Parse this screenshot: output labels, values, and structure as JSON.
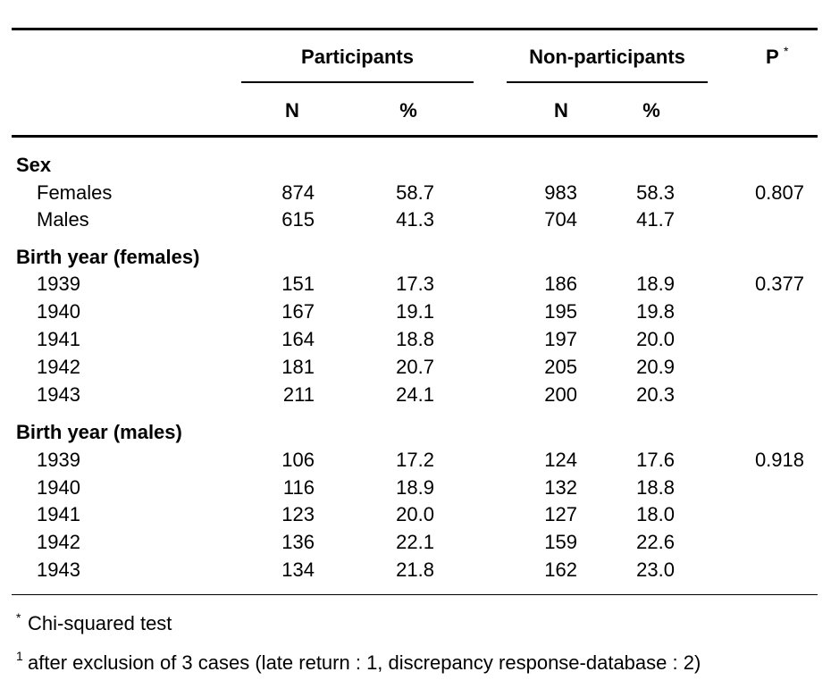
{
  "table": {
    "groups": {
      "participants": "Participants",
      "non_participants": "Non-participants"
    },
    "p_header": {
      "label": "P",
      "marker": "*"
    },
    "subheaders": [
      "N",
      "%",
      "N",
      "%"
    ],
    "sections": [
      {
        "title": "Sex",
        "rows": [
          {
            "label": "Females",
            "values": [
              "874",
              "58.7",
              "983",
              "58.3"
            ],
            "p": "0.807"
          },
          {
            "label": "Males",
            "values": [
              "615",
              "41.3",
              "704",
              "41.7"
            ]
          }
        ]
      },
      {
        "title": "Birth year (females)",
        "rows": [
          {
            "label": "1939",
            "values": [
              "151",
              "17.3",
              "186",
              "18.9"
            ],
            "p": "0.377"
          },
          {
            "label": "1940",
            "values": [
              "167",
              "19.1",
              "195",
              "19.8"
            ]
          },
          {
            "label": "1941",
            "values": [
              "164",
              "18.8",
              "197",
              "20.0"
            ]
          },
          {
            "label": "1942",
            "values": [
              "181",
              "20.7",
              "205",
              "20.9"
            ]
          },
          {
            "label": "1943",
            "values": [
              "211",
              "24.1",
              "200",
              "20.3"
            ]
          }
        ]
      },
      {
        "title": "Birth year (males)",
        "rows": [
          {
            "label": "1939",
            "values": [
              "106",
              "17.2",
              "124",
              "17.6"
            ],
            "p": "0.918"
          },
          {
            "label": "1940",
            "values": [
              "116",
              "18.9",
              "132",
              "18.8"
            ]
          },
          {
            "label": "1941",
            "values": [
              "123",
              "20.0",
              "127",
              "18.0"
            ]
          },
          {
            "label": "1942",
            "values": [
              "136",
              "22.1",
              "159",
              "22.6"
            ]
          },
          {
            "label": "1943",
            "values": [
              "134",
              "21.8",
              "162",
              "23.0"
            ]
          }
        ]
      }
    ]
  },
  "footnotes": [
    {
      "marker": "*",
      "text": "Chi-squared test"
    },
    {
      "marker": "1",
      "text": "after exclusion of 3 cases (late return : 1, discrepancy response-database : 2)"
    }
  ]
}
